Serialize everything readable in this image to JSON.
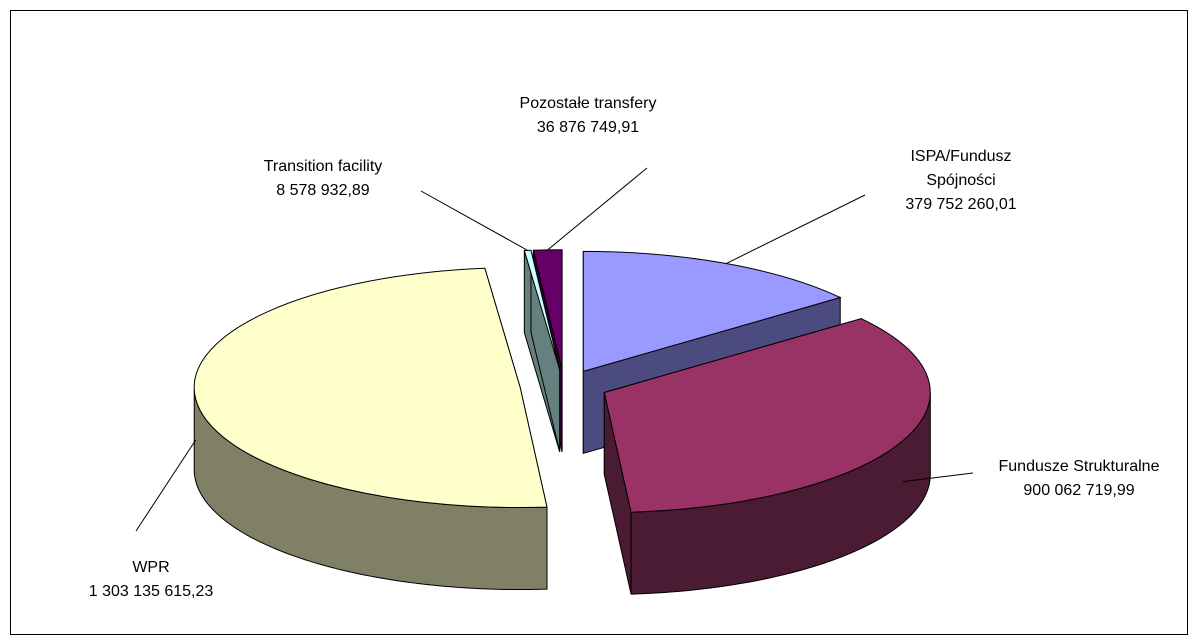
{
  "chart_data": {
    "type": "pie",
    "title": "",
    "legend": "none",
    "slices": [
      {
        "name": "ISPA/Fundusz Spójności",
        "label_lines": [
          "ISPA/Fundusz",
          "Spójności"
        ],
        "value": 379752260.01,
        "value_label": "379 752 260,01",
        "color": "#9999ff",
        "side_color": "#4b4b80"
      },
      {
        "name": "Fundusze Strukturalne",
        "label_lines": [
          "Fundusze Strukturalne"
        ],
        "value": 900062719.99,
        "value_label": "900 062 719,99",
        "color": "#993366",
        "side_color": "#4a1b33"
      },
      {
        "name": "WPR",
        "label_lines": [
          "WPR"
        ],
        "value": 1303135615.23,
        "value_label": "1 303 135 615,23",
        "color": "#ffffcc",
        "side_color": "#808066"
      },
      {
        "name": "Transition facility",
        "label_lines": [
          "Transition facility"
        ],
        "value": 8578932.89,
        "value_label": "8 578 932,89",
        "color": "#ccffff",
        "side_color": "#668080"
      },
      {
        "name": "Pozostałe transfery",
        "label_lines": [
          "Pozostałe transfery"
        ],
        "value": 36876749.91,
        "value_label": "36 876 749,91",
        "color": "#660066",
        "side_color": "#330033"
      }
    ]
  }
}
